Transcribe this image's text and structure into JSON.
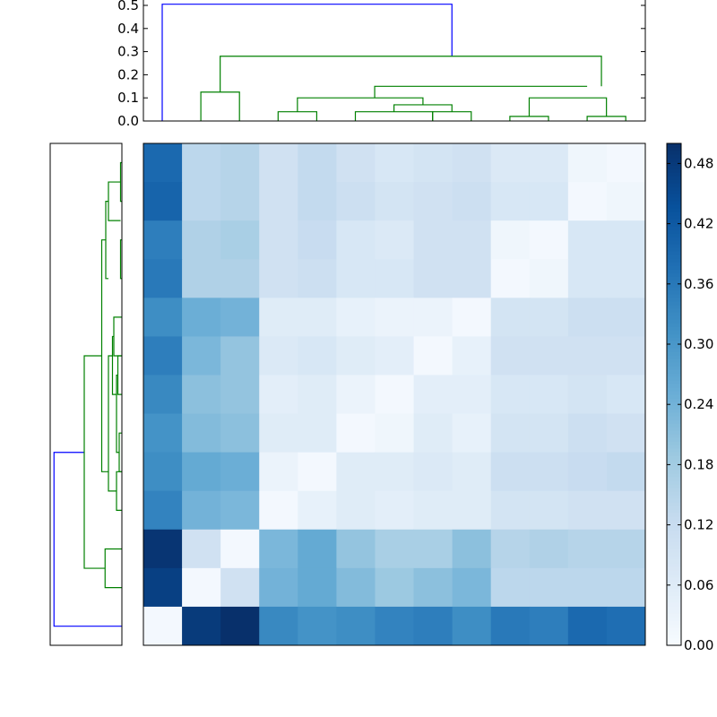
{
  "chart_data": [
    {
      "type": "dendrogram",
      "orientation": "top",
      "ylim": [
        0,
        0.52
      ],
      "yticks": [
        "0.0",
        "0.1",
        "0.2",
        "0.3",
        "0.4",
        "0.5"
      ],
      "link_colors": {
        "cluster": "#008000",
        "root": "#0000ff"
      },
      "leaf_count": 13,
      "links": [
        {
          "left": 0,
          "right": 7.5,
          "height": 0.505,
          "bottom_left": 0,
          "bottom_right": 0.28,
          "color": "root"
        },
        {
          "left": 1.5,
          "right": 11.37,
          "height": 0.28,
          "bottom_left": 0.125,
          "bottom_right": 0.15,
          "color": "cluster"
        },
        {
          "left": 1,
          "right": 2,
          "height": 0.125,
          "bottom_left": 0,
          "bottom_right": 0,
          "color": "cluster"
        },
        {
          "left": 5.5,
          "right": 11,
          "height": 0.15,
          "bottom_left": 0.1,
          "bottom_right": 0.15,
          "color": "cluster"
        },
        {
          "left": 3.5,
          "right": 6.75,
          "height": 0.1,
          "bottom_left": 0.04,
          "bottom_right": 0.07,
          "color": "cluster"
        },
        {
          "left": 3,
          "right": 4,
          "height": 0.04,
          "bottom_left": 0,
          "bottom_right": 0,
          "color": "cluster"
        },
        {
          "left": 6,
          "right": 7.5,
          "height": 0.07,
          "bottom_left": 0.04,
          "bottom_right": 0.04,
          "color": "cluster"
        },
        {
          "left": 5,
          "right": 7,
          "height": 0.04,
          "bottom_left": 0,
          "bottom_right": 0,
          "color": "cluster"
        },
        {
          "left": 7,
          "right": 8,
          "height": 0.04,
          "bottom_left": 0,
          "bottom_right": 0,
          "color": "cluster"
        },
        {
          "left": 9.5,
          "right": 11.5,
          "height": 0.1,
          "bottom_left": 0.02,
          "bottom_right": 0.02,
          "color": "cluster"
        },
        {
          "left": 9,
          "right": 10,
          "height": 0.02,
          "bottom_left": 0,
          "bottom_right": 0,
          "color": "cluster"
        },
        {
          "left": 11,
          "right": 12,
          "height": 0.02,
          "bottom_left": 0,
          "bottom_right": 0,
          "color": "cluster"
        }
      ]
    },
    {
      "type": "dendrogram",
      "orientation": "left",
      "xlim": [
        0,
        0.52
      ],
      "link_colors": {
        "cluster": "#008000",
        "root": "#0000ff"
      },
      "leaf_count": 13,
      "links": [
        {
          "top": 7.5,
          "bottom": 12,
          "height": 0.505,
          "end_top": 0.28,
          "end_bottom": 0,
          "color": "root"
        },
        {
          "top": 5,
          "bottom": 10.5,
          "height": 0.28,
          "end_top": 0.15,
          "end_bottom": 0.125,
          "color": "cluster"
        },
        {
          "top": 10,
          "bottom": 11,
          "height": 0.125,
          "end_top": 0,
          "end_bottom": 0,
          "color": "cluster"
        },
        {
          "top": 2,
          "bottom": 8,
          "height": 0.15,
          "end_top": 0.12,
          "end_bottom": 0.1,
          "color": "cluster"
        },
        {
          "top": 1,
          "bottom": 3,
          "height": 0.12,
          "end_top": 0.1,
          "end_bottom": 0.1,
          "color": "cluster"
        },
        {
          "top": 0.5,
          "bottom": 1.5,
          "height": 0.1,
          "end_top": 0.01,
          "end_bottom": 0.01,
          "color": "cluster"
        },
        {
          "top": 0,
          "bottom": 1,
          "height": 0.01,
          "end_top": 0,
          "end_bottom": 0,
          "color": "cluster"
        },
        {
          "top": 2,
          "bottom": 3,
          "height": 0.01,
          "end_top": 0,
          "end_bottom": 0,
          "color": "cluster"
        },
        {
          "top": 5,
          "bottom": 8.5,
          "height": 0.1,
          "end_top": 0.07,
          "end_bottom": 0.04,
          "color": "cluster"
        },
        {
          "top": 4.5,
          "bottom": 6,
          "height": 0.07,
          "end_top": 0.06,
          "end_bottom": 0.04,
          "color": "cluster"
        },
        {
          "top": 4,
          "bottom": 5,
          "height": 0.06,
          "end_top": 0,
          "end_bottom": 0,
          "color": "cluster"
        },
        {
          "top": 5.5,
          "bottom": 7.5,
          "height": 0.04,
          "end_top": 0.03,
          "end_bottom": 0.02,
          "color": "cluster"
        },
        {
          "top": 5,
          "bottom": 6,
          "height": 0.03,
          "end_top": 0,
          "end_bottom": 0,
          "color": "cluster"
        },
        {
          "top": 7,
          "bottom": 8,
          "height": 0.02,
          "end_top": 0,
          "end_bottom": 0,
          "color": "cluster"
        },
        {
          "top": 8,
          "bottom": 9,
          "height": 0.04,
          "end_top": 0,
          "end_bottom": 0,
          "color": "cluster"
        }
      ]
    },
    {
      "type": "heatmap",
      "rows": 13,
      "cols": 13,
      "vmin": 0,
      "vmax": 0.5,
      "colormap": "Blues",
      "colormap_stops": [
        "#f7fbff",
        "#deebf7",
        "#c6dbef",
        "#9ecae1",
        "#6baed6",
        "#4292c6",
        "#2171b5",
        "#08519c",
        "#08306b"
      ],
      "values": [
        [
          0.39,
          0.14,
          0.15,
          0.1,
          0.13,
          0.1,
          0.08,
          0.09,
          0.1,
          0.07,
          0.07,
          0.02,
          0.01
        ],
        [
          0.4,
          0.14,
          0.15,
          0.1,
          0.13,
          0.11,
          0.09,
          0.1,
          0.11,
          0.08,
          0.08,
          0.01,
          0.02
        ],
        [
          0.35,
          0.16,
          0.17,
          0.1,
          0.12,
          0.08,
          0.07,
          0.1,
          0.1,
          0.02,
          0.01,
          0.08,
          0.08
        ],
        [
          0.36,
          0.16,
          0.16,
          0.1,
          0.11,
          0.08,
          0.08,
          0.1,
          0.1,
          0.01,
          0.02,
          0.08,
          0.08
        ],
        [
          0.32,
          0.25,
          0.24,
          0.06,
          0.06,
          0.04,
          0.03,
          0.03,
          0.01,
          0.09,
          0.09,
          0.11,
          0.11
        ],
        [
          0.35,
          0.23,
          0.2,
          0.07,
          0.08,
          0.06,
          0.05,
          0.01,
          0.04,
          0.1,
          0.1,
          0.1,
          0.1
        ],
        [
          0.33,
          0.21,
          0.2,
          0.05,
          0.06,
          0.03,
          0.01,
          0.05,
          0.05,
          0.08,
          0.08,
          0.09,
          0.08
        ],
        [
          0.31,
          0.22,
          0.21,
          0.06,
          0.06,
          0.01,
          0.02,
          0.06,
          0.04,
          0.09,
          0.09,
          0.11,
          0.1
        ],
        [
          0.32,
          0.26,
          0.25,
          0.03,
          0.01,
          0.06,
          0.06,
          0.07,
          0.06,
          0.11,
          0.11,
          0.12,
          0.13
        ],
        [
          0.34,
          0.24,
          0.23,
          0.01,
          0.04,
          0.06,
          0.05,
          0.06,
          0.06,
          0.09,
          0.09,
          0.1,
          0.1
        ],
        [
          0.49,
          0.1,
          0.01,
          0.23,
          0.26,
          0.2,
          0.17,
          0.17,
          0.21,
          0.15,
          0.16,
          0.15,
          0.15
        ],
        [
          0.47,
          0.01,
          0.1,
          0.24,
          0.26,
          0.22,
          0.19,
          0.21,
          0.23,
          0.14,
          0.14,
          0.14,
          0.14
        ],
        [
          0.01,
          0.48,
          0.5,
          0.33,
          0.31,
          0.32,
          0.34,
          0.35,
          0.32,
          0.36,
          0.35,
          0.39,
          0.38
        ]
      ]
    },
    {
      "type": "colorbar",
      "vmin": 0,
      "vmax": 0.5,
      "ticks": [
        {
          "value": 0.0,
          "label": "0.00"
        },
        {
          "value": 0.06,
          "label": "0.06"
        },
        {
          "value": 0.12,
          "label": "0.12"
        },
        {
          "value": 0.18,
          "label": "0.18"
        },
        {
          "value": 0.24,
          "label": "0.24"
        },
        {
          "value": 0.3,
          "label": "0.30"
        },
        {
          "value": 0.36,
          "label": "0.36"
        },
        {
          "value": 0.42,
          "label": "0.42"
        },
        {
          "value": 0.48,
          "label": "0.48"
        }
      ]
    }
  ]
}
